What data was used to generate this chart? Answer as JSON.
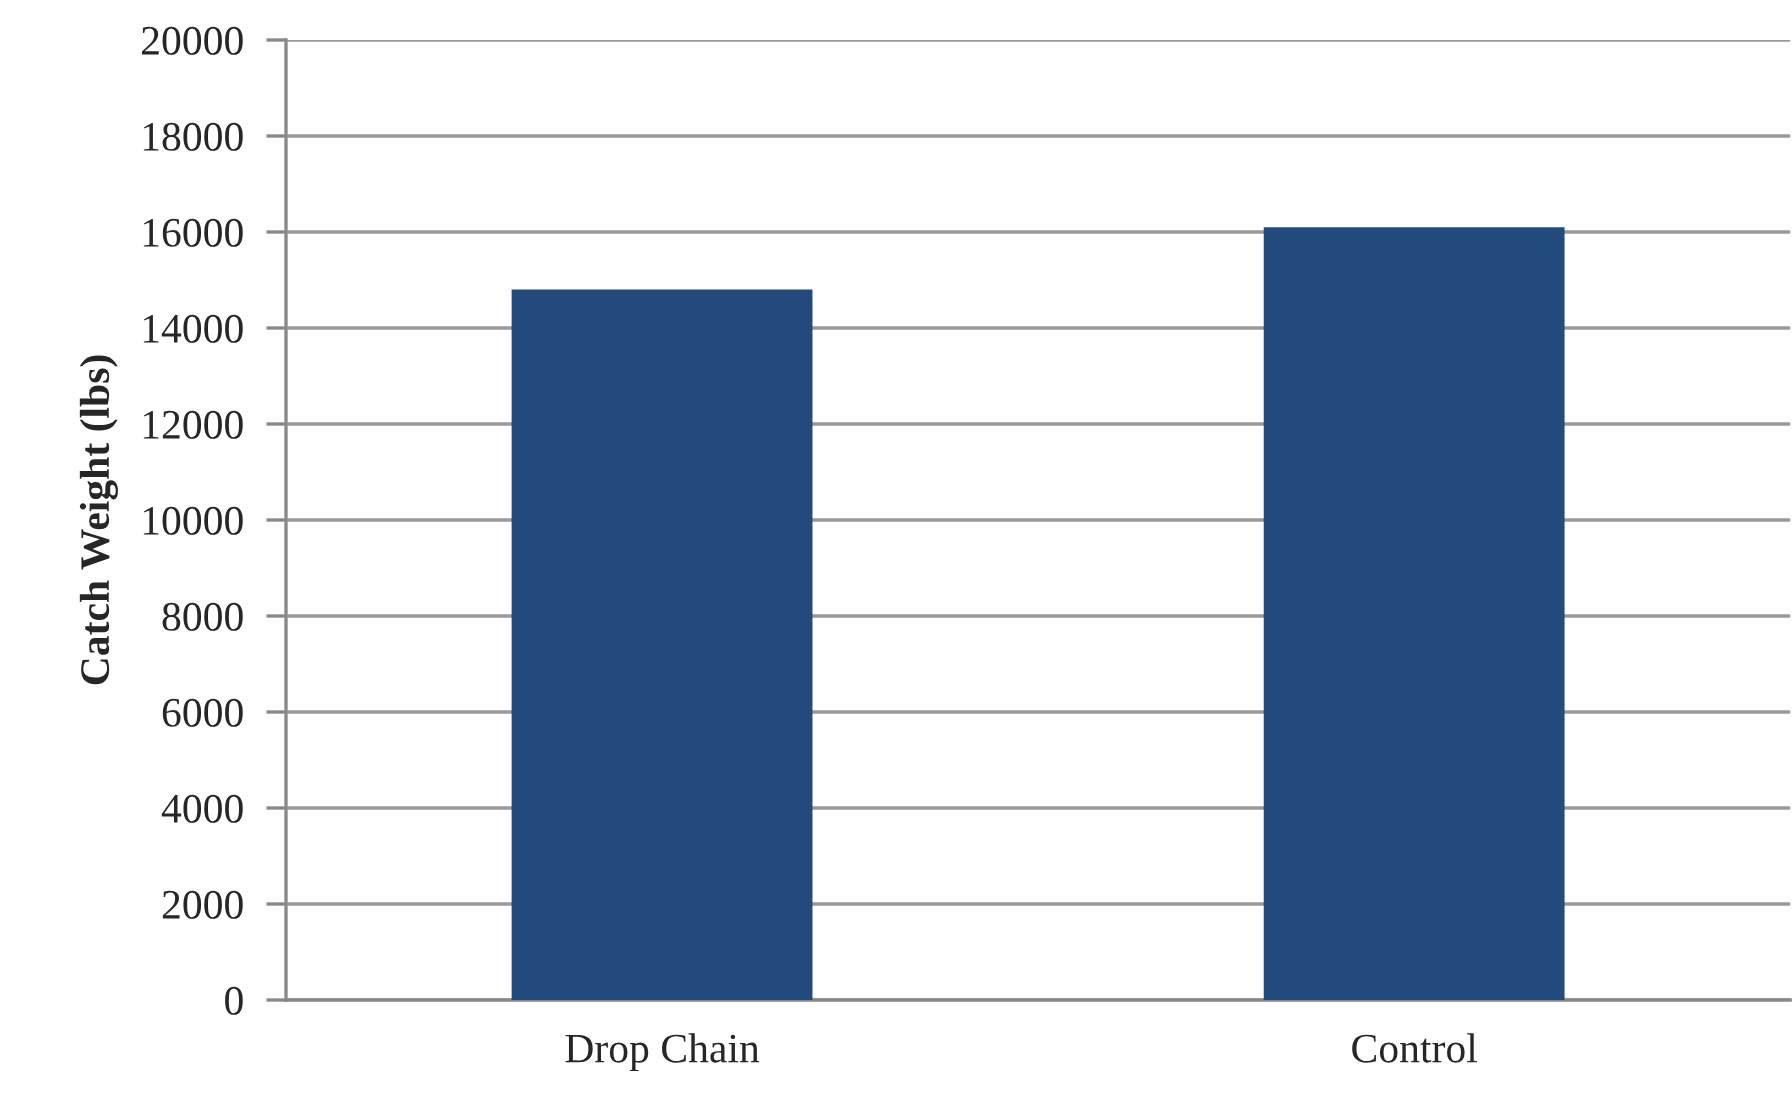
{
  "chart_data": {
    "type": "bar",
    "ylabel": "Catch Weight (lbs)",
    "categories": [
      "Drop Chain",
      "Control"
    ],
    "values": [
      14800,
      16100
    ],
    "color": "#224a7c",
    "ylim": [
      0,
      20000
    ],
    "yticks": [
      0,
      2000,
      4000,
      6000,
      8000,
      10000,
      12000,
      14000,
      16000,
      18000,
      20000
    ],
    "grid": "y"
  }
}
